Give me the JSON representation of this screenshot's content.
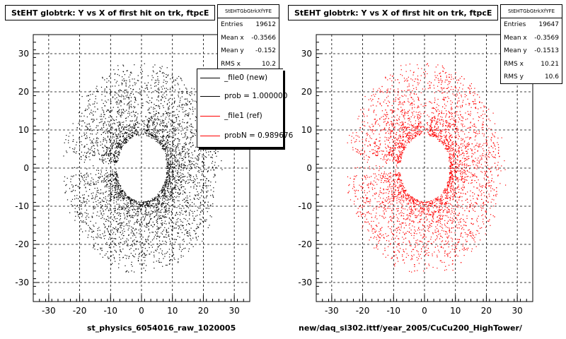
{
  "chart_data": [
    {
      "type": "scatter",
      "title": "StEHT globtrk: Y vs X of first hit on trk, ftpcE",
      "xlabel": "st_physics_6054016_raw_1020005",
      "ylabel": "",
      "xlim": [
        -35,
        35
      ],
      "ylim": [
        -35,
        35
      ],
      "xticks": [
        -30,
        -20,
        -10,
        0,
        10,
        20,
        30
      ],
      "yticks": [
        -30,
        -20,
        -10,
        0,
        10,
        20,
        30
      ],
      "grid": true,
      "color": "#000000",
      "distribution": {
        "inner_radius": 8,
        "outer_radius": 25,
        "entries": 19612
      },
      "stats": {
        "name": "StEHTGbGtrkXfYFE",
        "entries": {
          "label": "Entries",
          "value": "19612"
        },
        "mean_x": {
          "label": "Mean x",
          "value": "-0.3566"
        },
        "mean_y": {
          "label": "Mean y",
          "value": "-0.152"
        },
        "rms_x": {
          "label": "RMS x",
          "value": "10.2"
        }
      },
      "legend": {
        "placement": "top-right",
        "entries": [
          {
            "label": "_file0 (new)",
            "color": "#000000"
          },
          {
            "label": "prob = 1.000000",
            "color": "#000000"
          },
          {
            "label": "_file1 (ref)",
            "color": "#ff0000"
          },
          {
            "label": "probN = 0.989676",
            "color": "#ff0000"
          }
        ]
      }
    },
    {
      "type": "scatter",
      "title": "StEHT globtrk: Y vs X of first hit on trk, ftpcE",
      "xlabel": "new/daq_sl302.ittf/year_2005/CuCu200_HighTower/",
      "ylabel": "",
      "xlim": [
        -35,
        35
      ],
      "ylim": [
        -35,
        35
      ],
      "xticks": [
        -30,
        -20,
        -10,
        0,
        10,
        20,
        30
      ],
      "yticks": [
        -30,
        -20,
        -10,
        0,
        10,
        20,
        30
      ],
      "grid": true,
      "color": "#ff0000",
      "distribution": {
        "inner_radius": 8,
        "outer_radius": 25,
        "entries": 19647
      },
      "stats": {
        "name": "StEHTGbGtrkXfYFE",
        "entries": {
          "label": "Entries",
          "value": "19647"
        },
        "mean_x": {
          "label": "Mean x",
          "value": "-0.3569"
        },
        "mean_y": {
          "label": "Mean y",
          "value": "-0.1513"
        },
        "rms_x": {
          "label": "RMS x",
          "value": "10.21"
        },
        "rms_y": {
          "label": "RMS y",
          "value": "10.6"
        }
      }
    }
  ]
}
